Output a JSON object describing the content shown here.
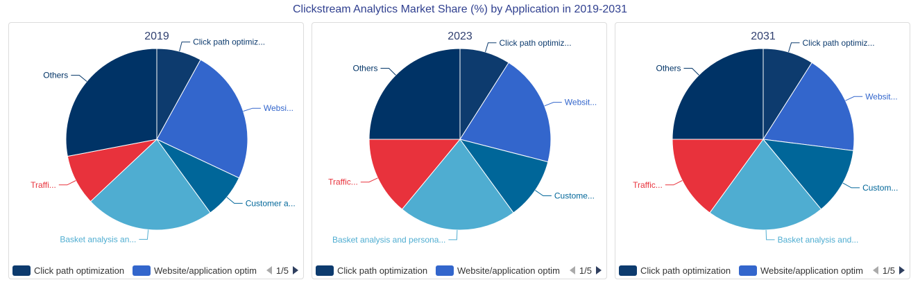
{
  "title": "Clickstream Analytics Market Share (%) by Application in 2019-2031",
  "legend": {
    "items": [
      "Click path optimization",
      "Website/application optim"
    ],
    "page": "1/5"
  },
  "chart_data": [
    {
      "type": "pie",
      "title": "2019",
      "slices": [
        {
          "label": "Click path optimization",
          "display_label": "Click path optimiz...",
          "value": 8,
          "color": "#0d3b6e"
        },
        {
          "label": "Website/application optimization",
          "display_label": "Websi...",
          "value": 24,
          "color": "#3366cc"
        },
        {
          "label": "Customer analysis",
          "display_label": "Customer a...",
          "value": 8,
          "color": "#006699"
        },
        {
          "label": "Basket analysis and personalization",
          "display_label": "Basket analysis an...",
          "value": 23,
          "color": "#4fadd1"
        },
        {
          "label": "Traffic analysis",
          "display_label": "Traffi...",
          "value": 9,
          "color": "#e8323c"
        },
        {
          "label": "Others",
          "display_label": "Others",
          "value": 28,
          "color": "#003366"
        }
      ]
    },
    {
      "type": "pie",
      "title": "2023",
      "slices": [
        {
          "label": "Click path optimization",
          "display_label": "Click path optimiz...",
          "value": 9,
          "color": "#0d3b6e"
        },
        {
          "label": "Website/application optimization",
          "display_label": "Websit...",
          "value": 20,
          "color": "#3366cc"
        },
        {
          "label": "Customer analysis",
          "display_label": "Custome...",
          "value": 11,
          "color": "#006699"
        },
        {
          "label": "Basket analysis and personalization",
          "display_label": "Basket analysis and persona...",
          "value": 21,
          "color": "#4fadd1"
        },
        {
          "label": "Traffic analysis",
          "display_label": "Traffic...",
          "value": 14,
          "color": "#e8323c"
        },
        {
          "label": "Others",
          "display_label": "Others",
          "value": 25,
          "color": "#003366"
        }
      ]
    },
    {
      "type": "pie",
      "title": "2031",
      "slices": [
        {
          "label": "Click path optimization",
          "display_label": "Click path optimiz...",
          "value": 9,
          "color": "#0d3b6e"
        },
        {
          "label": "Website/application optimization",
          "display_label": "Websit...",
          "value": 18,
          "color": "#3366cc"
        },
        {
          "label": "Customer analysis",
          "display_label": "Custom...",
          "value": 12,
          "color": "#006699"
        },
        {
          "label": "Basket analysis and personalization",
          "display_label": "Basket analysis and...",
          "value": 21,
          "color": "#4fadd1"
        },
        {
          "label": "Traffic analysis",
          "display_label": "Traffic...",
          "value": 15,
          "color": "#e8323c"
        },
        {
          "label": "Others",
          "display_label": "Others",
          "value": 25,
          "color": "#003366"
        }
      ]
    }
  ]
}
